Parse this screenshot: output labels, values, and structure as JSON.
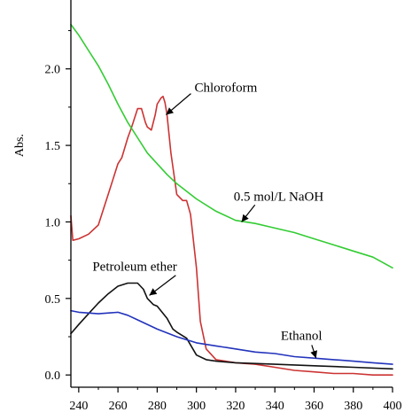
{
  "chart_data": {
    "type": "line",
    "title": "",
    "xlabel": "",
    "ylabel": "Abs.",
    "xlim": [
      236,
      400
    ],
    "ylim": [
      -0.08,
      2.45
    ],
    "xticks": [
      240,
      260,
      280,
      300,
      320,
      340,
      360,
      380,
      400
    ],
    "yticks": [
      0.0,
      0.5,
      1.0,
      1.5,
      2.0
    ],
    "ytick_labels": [
      "0.0",
      "0.5",
      "1.0",
      "1.5",
      "2.0"
    ],
    "grid": false,
    "legend": "none",
    "series": [
      {
        "name": "Chloroform",
        "color": "#cc3333",
        "x": [
          236,
          237,
          240,
          245,
          250,
          255,
          260,
          262,
          265,
          267,
          270,
          272,
          274,
          275,
          277,
          279,
          280,
          282,
          283,
          284,
          285,
          287,
          290,
          293,
          295,
          297,
          300,
          302,
          305,
          310,
          320,
          330,
          340,
          350,
          360,
          370,
          380,
          390,
          400
        ],
        "y": [
          1.04,
          0.88,
          0.89,
          0.92,
          0.98,
          1.18,
          1.38,
          1.42,
          1.55,
          1.62,
          1.74,
          1.74,
          1.65,
          1.62,
          1.6,
          1.7,
          1.77,
          1.81,
          1.82,
          1.78,
          1.7,
          1.45,
          1.18,
          1.14,
          1.14,
          1.05,
          0.7,
          0.35,
          0.17,
          0.1,
          0.08,
          0.07,
          0.05,
          0.03,
          0.02,
          0.01,
          0.01,
          0.0,
          0.0
        ]
      },
      {
        "name": "0.5 mol/L NaOH",
        "color": "#33cc33",
        "x": [
          236,
          240,
          245,
          250,
          255,
          260,
          265,
          270,
          275,
          280,
          285,
          290,
          295,
          300,
          310,
          320,
          330,
          340,
          350,
          360,
          370,
          380,
          390,
          400
        ],
        "y": [
          2.29,
          2.22,
          2.12,
          2.02,
          1.9,
          1.77,
          1.65,
          1.55,
          1.45,
          1.38,
          1.31,
          1.25,
          1.2,
          1.15,
          1.07,
          1.01,
          0.99,
          0.96,
          0.93,
          0.89,
          0.85,
          0.81,
          0.77,
          0.7
        ]
      },
      {
        "name": "Petroleum ether",
        "color": "#111111",
        "x": [
          236,
          240,
          245,
          250,
          255,
          260,
          265,
          270,
          273,
          275,
          278,
          280,
          285,
          288,
          290,
          295,
          300,
          305,
          310,
          320,
          340,
          360,
          380,
          400
        ],
        "y": [
          0.27,
          0.33,
          0.4,
          0.47,
          0.53,
          0.58,
          0.6,
          0.6,
          0.56,
          0.5,
          0.46,
          0.45,
          0.37,
          0.3,
          0.28,
          0.24,
          0.13,
          0.1,
          0.09,
          0.08,
          0.07,
          0.06,
          0.05,
          0.04
        ]
      },
      {
        "name": "Ethanol",
        "color": "#2233bb",
        "x": [
          236,
          240,
          250,
          260,
          265,
          270,
          280,
          290,
          300,
          310,
          320,
          330,
          340,
          350,
          360,
          370,
          380,
          390,
          400
        ],
        "y": [
          0.42,
          0.41,
          0.4,
          0.41,
          0.39,
          0.36,
          0.3,
          0.25,
          0.21,
          0.19,
          0.17,
          0.15,
          0.14,
          0.12,
          0.11,
          0.1,
          0.09,
          0.08,
          0.07
        ]
      }
    ],
    "annotations": [
      {
        "text": "Chloroform",
        "x": 299,
        "y": 1.85,
        "arrow_to": [
          284.5,
          1.7
        ]
      },
      {
        "text": "0.5 mol/L NaOH",
        "x": 319,
        "y": 1.14,
        "arrow_to": [
          323,
          1.0
        ]
      },
      {
        "text": "Petroleum ether",
        "x": 247,
        "y": 0.68,
        "arrow_to": [
          276,
          0.52
        ]
      },
      {
        "text": "Ethanol",
        "x": 343,
        "y": 0.23,
        "arrow_to": [
          361,
          0.11
        ]
      }
    ]
  }
}
